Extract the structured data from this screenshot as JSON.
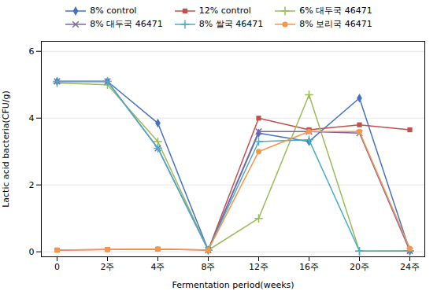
{
  "chart_data": {
    "type": "line",
    "xlabel": "Fermentation period(weeks)",
    "ylabel": "Lactic acid bacteria(CFU/g)",
    "categories": [
      "0",
      "2주",
      "4주",
      "8주",
      "12주",
      "16주",
      "20주",
      "24주"
    ],
    "series": [
      {
        "name": "8% control",
        "color": "#4472C4",
        "marker": "diamond",
        "line_style": "solid",
        "values": [
          5.1,
          5.1,
          3.85,
          0.05,
          3.55,
          3.3,
          4.6,
          0.02
        ]
      },
      {
        "name": "12% control",
        "color": "#C0504D",
        "marker": "square",
        "line_style": "solid",
        "values": [
          0.05,
          0.07,
          0.08,
          0.05,
          4.0,
          3.65,
          3.8,
          3.65
        ]
      },
      {
        "name": "6% 대두국 46471",
        "color": "#9BBB59",
        "marker": "plus",
        "line_style": "solid",
        "values": [
          5.05,
          5.0,
          3.3,
          0.05,
          1.0,
          4.7,
          0.02,
          0.03
        ]
      },
      {
        "name": "8% 대두국 46471",
        "color": "#8064A2",
        "marker": "x",
        "line_style": "solid",
        "values": [
          5.1,
          5.1,
          3.1,
          0.05,
          3.6,
          3.6,
          3.55,
          0.03
        ]
      },
      {
        "name": "8% 쌀국 46471",
        "color": "#4BACC6",
        "marker": "plus",
        "line_style": "solid",
        "values": [
          5.1,
          5.1,
          3.1,
          0.05,
          3.3,
          3.35,
          0.02,
          0.02
        ]
      },
      {
        "name": "8% 보리국 46471",
        "color": "#F79646",
        "marker": "circle",
        "line_style": "solid",
        "values": [
          0.05,
          0.07,
          0.08,
          0.05,
          3.0,
          3.6,
          3.6,
          0.1
        ]
      }
    ],
    "ylim": [
      -0.15,
      6.3
    ],
    "yticks": [
      0,
      2,
      4,
      6
    ],
    "grid": true,
    "legend": "top"
  }
}
